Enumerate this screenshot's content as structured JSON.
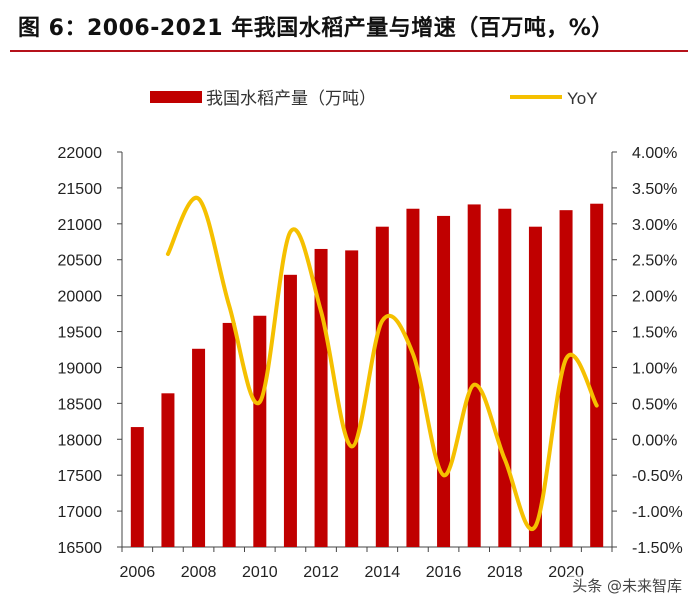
{
  "title": "图 6：2006-2021 年我国水稻产量与增速（百万吨，%）",
  "watermark": "头条 @未来智库",
  "colors": {
    "bar": "#c00000",
    "line": "#f5c000",
    "accent": "#b5121b",
    "axis": "#444444"
  },
  "chart_data": {
    "type": "bar",
    "categories": [
      "2006",
      "2007",
      "2008",
      "2009",
      "2010",
      "2011",
      "2012",
      "2013",
      "2014",
      "2015",
      "2016",
      "2017",
      "2018",
      "2019",
      "2020",
      "2021"
    ],
    "x_tick_labels": [
      "2006",
      "2008",
      "2010",
      "2012",
      "2014",
      "2016",
      "2018",
      "2020"
    ],
    "series": [
      {
        "name": "我国水稻产量（万吨）",
        "type": "bar",
        "axis": "left",
        "values": [
          18170,
          18640,
          19260,
          19620,
          19720,
          20290,
          20650,
          20630,
          20960,
          21210,
          21110,
          21270,
          21210,
          20960,
          21190,
          21280
        ]
      },
      {
        "name": "YoY",
        "type": "line",
        "axis": "right",
        "values": [
          null,
          2.58,
          3.35,
          1.86,
          0.52,
          2.89,
          1.78,
          -0.1,
          1.65,
          1.19,
          -0.5,
          0.76,
          -0.28,
          -1.21,
          1.12,
          0.47
        ]
      }
    ],
    "y_left": {
      "min": 16500,
      "max": 22000,
      "step": 500,
      "ticks": [
        "16500",
        "17000",
        "17500",
        "18000",
        "18500",
        "19000",
        "19500",
        "20000",
        "20500",
        "21000",
        "21500",
        "22000"
      ]
    },
    "y_right": {
      "min": -1.5,
      "max": 4.0,
      "step": 0.5,
      "ticks": [
        "-1.50%",
        "-1.00%",
        "-0.50%",
        "0.00%",
        "0.50%",
        "1.00%",
        "1.50%",
        "2.00%",
        "2.50%",
        "3.00%",
        "3.50%",
        "4.00%"
      ]
    },
    "legend": {
      "placement": "top",
      "items": [
        "我国水稻产量（万吨）",
        "YoY"
      ]
    }
  }
}
